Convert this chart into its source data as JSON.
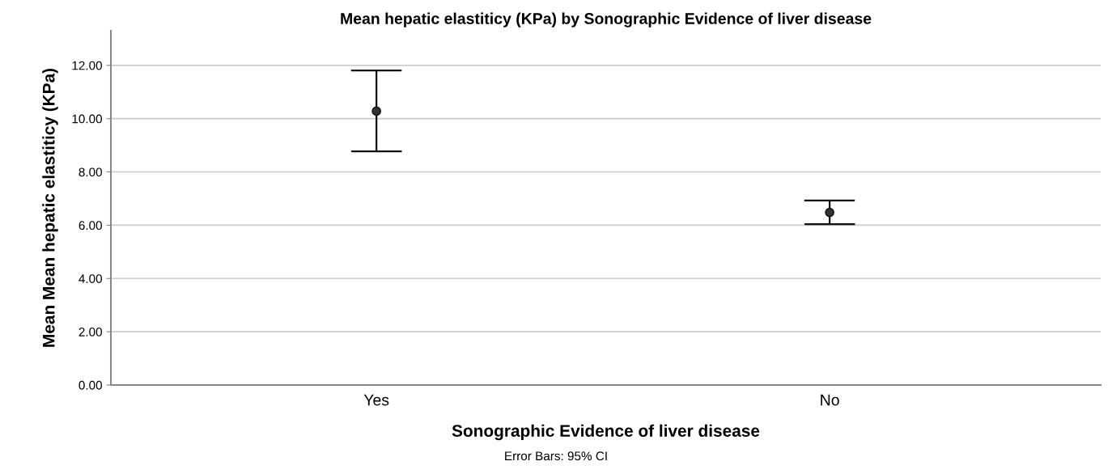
{
  "chart_data": {
    "type": "scatter",
    "title": "Mean hepatic elastiticy (KPa) by Sonographic Evidence of liver disease",
    "xlabel": "Sonographic Evidence of liver disease",
    "ylabel": "Mean Mean hepatic elastiticy (KPa)",
    "categories": [
      "Yes",
      "No"
    ],
    "values": [
      10.28,
      6.48
    ],
    "errors": [
      [
        8.77,
        11.81
      ],
      [
        6.04,
        6.93
      ]
    ],
    "color": "#333333",
    "marker": "circle",
    "ylim": [
      0,
      13.3
    ],
    "yticks": [
      {
        "value": 0,
        "label": "0.00"
      },
      {
        "value": 2,
        "label": "2.00"
      },
      {
        "value": 4,
        "label": "4.00"
      },
      {
        "value": 6,
        "label": "6.00"
      },
      {
        "value": 8,
        "label": "8.00"
      },
      {
        "value": 10,
        "label": "10.00"
      },
      {
        "value": 12,
        "label": "12.00"
      }
    ],
    "grid": "y",
    "legend": false,
    "annotations": [
      "Error Bars: 95% CI"
    ]
  }
}
